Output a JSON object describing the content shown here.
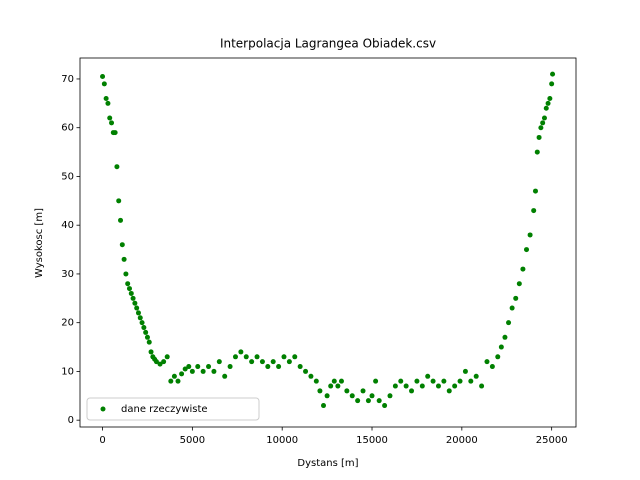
{
  "chart_data": {
    "type": "scatter",
    "title": "Interpolacja Lagrangea Obiadek.csv",
    "x_label": "Dystans [m]",
    "y_label": "Wysokosc [m]",
    "x": [
      0,
      100,
      200,
      300,
      400,
      500,
      600,
      700,
      800,
      900,
      1000,
      1100,
      1200,
      1300,
      1400,
      1500,
      1600,
      1700,
      1800,
      1900,
      2000,
      2100,
      2200,
      2300,
      2400,
      2500,
      2600,
      2700,
      2800,
      2900,
      3000,
      3200,
      3400,
      3600,
      3800,
      4000,
      4200,
      4400,
      4600,
      4800,
      5000,
      5300,
      5600,
      5900,
      6200,
      6500,
      6800,
      7100,
      7400,
      7700,
      8000,
      8300,
      8600,
      8900,
      9200,
      9500,
      9800,
      10100,
      10400,
      10700,
      11000,
      11300,
      11600,
      11900,
      12100,
      12300,
      12500,
      12700,
      12900,
      13100,
      13300,
      13600,
      13900,
      14200,
      14500,
      14800,
      15000,
      15200,
      15400,
      15700,
      16000,
      16300,
      16600,
      16900,
      17200,
      17500,
      17800,
      18100,
      18400,
      18700,
      19000,
      19300,
      19600,
      19900,
      20200,
      20500,
      20800,
      21100,
      21400,
      21700,
      22000,
      22200,
      22400,
      22600,
      22800,
      23000,
      23200,
      23400,
      23600,
      23800,
      24000,
      24100,
      24200,
      24300,
      24400,
      24500,
      24600,
      24700,
      24800,
      24900,
      25000,
      25050
    ],
    "series": [
      {
        "name": "dane rzeczywiste",
        "color": "#008000",
        "values": [
          70.5,
          69,
          66,
          65,
          62,
          61,
          59,
          59,
          52,
          45,
          41,
          36,
          33,
          30,
          28,
          27,
          26,
          25,
          24,
          23,
          22,
          21,
          20,
          19,
          18,
          17,
          16,
          14,
          13,
          12.5,
          12,
          11.5,
          12,
          13,
          8,
          9,
          8,
          9.5,
          10.5,
          11,
          10,
          11,
          10,
          11,
          10,
          12,
          9,
          11,
          13,
          14,
          13,
          12,
          13,
          12,
          11,
          12,
          11,
          13,
          12,
          13,
          11,
          10,
          9,
          8,
          6,
          3,
          5,
          7,
          8,
          7,
          8,
          6,
          5,
          4,
          6,
          4,
          5,
          8,
          4,
          3,
          5,
          7,
          8,
          7,
          6,
          8,
          7,
          9,
          8,
          7,
          8,
          6,
          7,
          8,
          10,
          8,
          9,
          7,
          12,
          11,
          13,
          15,
          17,
          20,
          23,
          25,
          28,
          31,
          35,
          38,
          43,
          47,
          55,
          58,
          60,
          61,
          62,
          64,
          65,
          66,
          69,
          71
        ]
      }
    ],
    "xlim": [
      -1255,
      26355
    ],
    "ylim": [
      -1.4,
      74.3
    ],
    "xticks": [
      0,
      5000,
      10000,
      15000,
      20000,
      25000
    ],
    "yticks": [
      0,
      10,
      20,
      30,
      40,
      50,
      60,
      70
    ],
    "legend": "lower left"
  }
}
